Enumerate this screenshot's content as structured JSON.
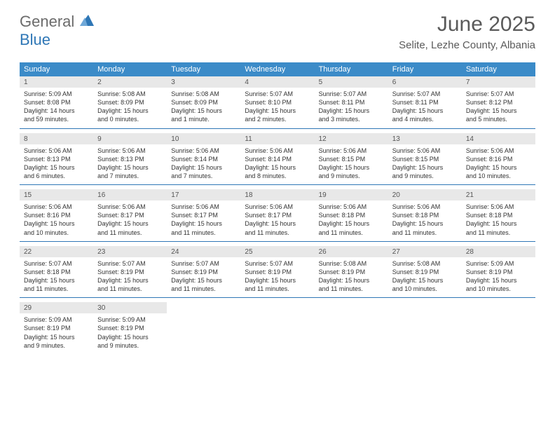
{
  "brand": {
    "part1": "General",
    "part2": "Blue"
  },
  "title": "June 2025",
  "location": "Selite, Lezhe County, Albania",
  "weekdays": [
    "Sunday",
    "Monday",
    "Tuesday",
    "Wednesday",
    "Thursday",
    "Friday",
    "Saturday"
  ],
  "colors": {
    "header_bg": "#3b8bc8",
    "daynum_bg": "#e8e8e8",
    "border": "#2f77b6",
    "brand_gray": "#6b6b6b",
    "brand_blue": "#2f77b6",
    "title_color": "#5a5a5a"
  },
  "weeks": [
    {
      "days": [
        {
          "n": "1",
          "sunrise": "Sunrise: 5:09 AM",
          "sunset": "Sunset: 8:08 PM",
          "dl1": "Daylight: 14 hours",
          "dl2": "and 59 minutes."
        },
        {
          "n": "2",
          "sunrise": "Sunrise: 5:08 AM",
          "sunset": "Sunset: 8:09 PM",
          "dl1": "Daylight: 15 hours",
          "dl2": "and 0 minutes."
        },
        {
          "n": "3",
          "sunrise": "Sunrise: 5:08 AM",
          "sunset": "Sunset: 8:09 PM",
          "dl1": "Daylight: 15 hours",
          "dl2": "and 1 minute."
        },
        {
          "n": "4",
          "sunrise": "Sunrise: 5:07 AM",
          "sunset": "Sunset: 8:10 PM",
          "dl1": "Daylight: 15 hours",
          "dl2": "and 2 minutes."
        },
        {
          "n": "5",
          "sunrise": "Sunrise: 5:07 AM",
          "sunset": "Sunset: 8:11 PM",
          "dl1": "Daylight: 15 hours",
          "dl2": "and 3 minutes."
        },
        {
          "n": "6",
          "sunrise": "Sunrise: 5:07 AM",
          "sunset": "Sunset: 8:11 PM",
          "dl1": "Daylight: 15 hours",
          "dl2": "and 4 minutes."
        },
        {
          "n": "7",
          "sunrise": "Sunrise: 5:07 AM",
          "sunset": "Sunset: 8:12 PM",
          "dl1": "Daylight: 15 hours",
          "dl2": "and 5 minutes."
        }
      ]
    },
    {
      "days": [
        {
          "n": "8",
          "sunrise": "Sunrise: 5:06 AM",
          "sunset": "Sunset: 8:13 PM",
          "dl1": "Daylight: 15 hours",
          "dl2": "and 6 minutes."
        },
        {
          "n": "9",
          "sunrise": "Sunrise: 5:06 AM",
          "sunset": "Sunset: 8:13 PM",
          "dl1": "Daylight: 15 hours",
          "dl2": "and 7 minutes."
        },
        {
          "n": "10",
          "sunrise": "Sunrise: 5:06 AM",
          "sunset": "Sunset: 8:14 PM",
          "dl1": "Daylight: 15 hours",
          "dl2": "and 7 minutes."
        },
        {
          "n": "11",
          "sunrise": "Sunrise: 5:06 AM",
          "sunset": "Sunset: 8:14 PM",
          "dl1": "Daylight: 15 hours",
          "dl2": "and 8 minutes."
        },
        {
          "n": "12",
          "sunrise": "Sunrise: 5:06 AM",
          "sunset": "Sunset: 8:15 PM",
          "dl1": "Daylight: 15 hours",
          "dl2": "and 9 minutes."
        },
        {
          "n": "13",
          "sunrise": "Sunrise: 5:06 AM",
          "sunset": "Sunset: 8:15 PM",
          "dl1": "Daylight: 15 hours",
          "dl2": "and 9 minutes."
        },
        {
          "n": "14",
          "sunrise": "Sunrise: 5:06 AM",
          "sunset": "Sunset: 8:16 PM",
          "dl1": "Daylight: 15 hours",
          "dl2": "and 10 minutes."
        }
      ]
    },
    {
      "days": [
        {
          "n": "15",
          "sunrise": "Sunrise: 5:06 AM",
          "sunset": "Sunset: 8:16 PM",
          "dl1": "Daylight: 15 hours",
          "dl2": "and 10 minutes."
        },
        {
          "n": "16",
          "sunrise": "Sunrise: 5:06 AM",
          "sunset": "Sunset: 8:17 PM",
          "dl1": "Daylight: 15 hours",
          "dl2": "and 11 minutes."
        },
        {
          "n": "17",
          "sunrise": "Sunrise: 5:06 AM",
          "sunset": "Sunset: 8:17 PM",
          "dl1": "Daylight: 15 hours",
          "dl2": "and 11 minutes."
        },
        {
          "n": "18",
          "sunrise": "Sunrise: 5:06 AM",
          "sunset": "Sunset: 8:17 PM",
          "dl1": "Daylight: 15 hours",
          "dl2": "and 11 minutes."
        },
        {
          "n": "19",
          "sunrise": "Sunrise: 5:06 AM",
          "sunset": "Sunset: 8:18 PM",
          "dl1": "Daylight: 15 hours",
          "dl2": "and 11 minutes."
        },
        {
          "n": "20",
          "sunrise": "Sunrise: 5:06 AM",
          "sunset": "Sunset: 8:18 PM",
          "dl1": "Daylight: 15 hours",
          "dl2": "and 11 minutes."
        },
        {
          "n": "21",
          "sunrise": "Sunrise: 5:06 AM",
          "sunset": "Sunset: 8:18 PM",
          "dl1": "Daylight: 15 hours",
          "dl2": "and 11 minutes."
        }
      ]
    },
    {
      "days": [
        {
          "n": "22",
          "sunrise": "Sunrise: 5:07 AM",
          "sunset": "Sunset: 8:18 PM",
          "dl1": "Daylight: 15 hours",
          "dl2": "and 11 minutes."
        },
        {
          "n": "23",
          "sunrise": "Sunrise: 5:07 AM",
          "sunset": "Sunset: 8:19 PM",
          "dl1": "Daylight: 15 hours",
          "dl2": "and 11 minutes."
        },
        {
          "n": "24",
          "sunrise": "Sunrise: 5:07 AM",
          "sunset": "Sunset: 8:19 PM",
          "dl1": "Daylight: 15 hours",
          "dl2": "and 11 minutes."
        },
        {
          "n": "25",
          "sunrise": "Sunrise: 5:07 AM",
          "sunset": "Sunset: 8:19 PM",
          "dl1": "Daylight: 15 hours",
          "dl2": "and 11 minutes."
        },
        {
          "n": "26",
          "sunrise": "Sunrise: 5:08 AM",
          "sunset": "Sunset: 8:19 PM",
          "dl1": "Daylight: 15 hours",
          "dl2": "and 11 minutes."
        },
        {
          "n": "27",
          "sunrise": "Sunrise: 5:08 AM",
          "sunset": "Sunset: 8:19 PM",
          "dl1": "Daylight: 15 hours",
          "dl2": "and 10 minutes."
        },
        {
          "n": "28",
          "sunrise": "Sunrise: 5:09 AM",
          "sunset": "Sunset: 8:19 PM",
          "dl1": "Daylight: 15 hours",
          "dl2": "and 10 minutes."
        }
      ]
    },
    {
      "days": [
        {
          "n": "29",
          "sunrise": "Sunrise: 5:09 AM",
          "sunset": "Sunset: 8:19 PM",
          "dl1": "Daylight: 15 hours",
          "dl2": "and 9 minutes."
        },
        {
          "n": "30",
          "sunrise": "Sunrise: 5:09 AM",
          "sunset": "Sunset: 8:19 PM",
          "dl1": "Daylight: 15 hours",
          "dl2": "and 9 minutes."
        },
        {
          "empty": true
        },
        {
          "empty": true
        },
        {
          "empty": true
        },
        {
          "empty": true
        },
        {
          "empty": true
        }
      ]
    }
  ]
}
